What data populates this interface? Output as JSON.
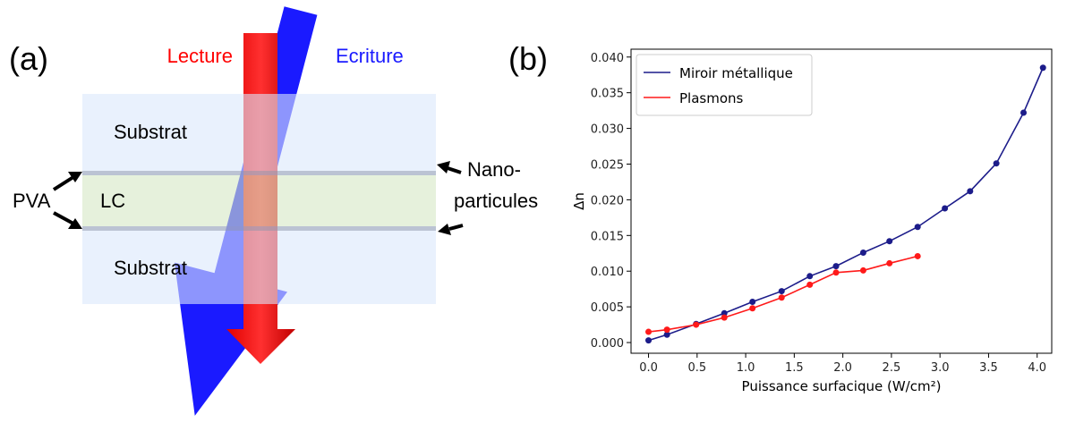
{
  "diagram": {
    "panel_label": "(a)",
    "read_label": "Lecture",
    "write_label": "Ecriture",
    "layers": [
      "Substrat",
      "LC",
      "Substrat"
    ],
    "pva_label": "PVA",
    "nano_label": [
      "Nano-",
      "particules"
    ]
  },
  "chart_data": {
    "type": "line",
    "panel_label": "(b)",
    "xlabel": "Puissance surfacique (W/cm²)",
    "ylabel": "Δn",
    "xlim": [
      -0.18,
      4.15
    ],
    "ylim": [
      -0.0015,
      0.0411
    ],
    "xticks": [
      {
        "value": 0,
        "label": "0.0"
      },
      0.5,
      {
        "value": 1,
        "label": "1.0"
      },
      1.5,
      {
        "value": 2,
        "label": "2.0"
      },
      2.5,
      {
        "value": 3,
        "label": "3.0"
      },
      3.5,
      {
        "value": 4,
        "label": "4.0"
      }
    ],
    "yticks": [
      {
        "value": 0,
        "label": "0.000"
      },
      0.005,
      {
        "value": 0.01,
        "label": "0.010"
      },
      0.015,
      {
        "value": 0.02,
        "label": "0.020"
      },
      0.025,
      {
        "value": 0.03,
        "label": "0.030"
      },
      0.035,
      {
        "value": 0.04,
        "label": "0.040"
      }
    ],
    "legend": "upper left",
    "series": [
      {
        "name": "Miroir métallique",
        "color": "#1c1c8a",
        "x": [
          0,
          0.19,
          0.49,
          0.78,
          1.07,
          1.37,
          1.66,
          1.93,
          2.21,
          2.48,
          2.77,
          3.05,
          3.31,
          3.58,
          3.86,
          4.06
        ],
        "values": [
          0.0003,
          0.0011,
          0.0026,
          0.0041,
          0.0057,
          0.0072,
          0.0093,
          0.0107,
          0.0126,
          0.0142,
          0.0162,
          0.0188,
          0.0212,
          0.0251,
          0.0322,
          0.0385
        ]
      },
      {
        "name": "Plasmons",
        "color": "#ff1a1a",
        "x": [
          0,
          0.19,
          0.49,
          0.78,
          1.07,
          1.37,
          1.66,
          1.93,
          2.21,
          2.48,
          2.77
        ],
        "values": [
          0.0015,
          0.0018,
          0.0025,
          0.0035,
          0.0048,
          0.0063,
          0.0081,
          0.0098,
          0.0101,
          0.0111,
          0.0121
        ]
      }
    ]
  }
}
